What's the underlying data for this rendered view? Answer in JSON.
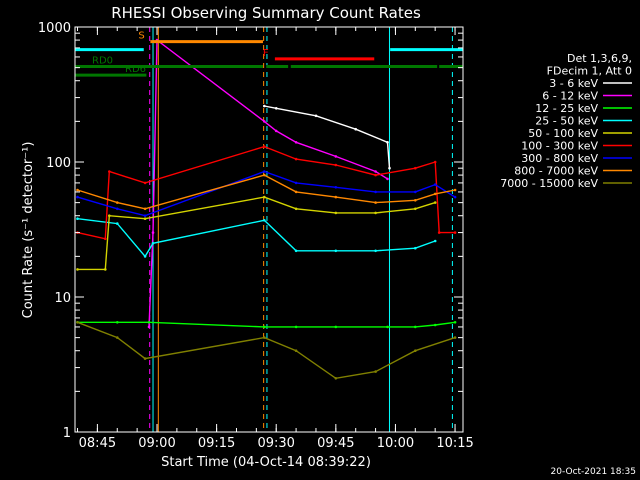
{
  "chart_data": {
    "type": "line",
    "title": "RHESSI Observing Summary Count Rates",
    "xlabel": "Start Time (04-Oct-14 08:39:22)",
    "ylabel": "Count Rate (s⁻¹ detector⁻¹)",
    "y_scale": "log",
    "ylim": [
      1,
      1000
    ],
    "xlim": [
      "08:39:22",
      "10:17:00"
    ],
    "x_ticks": [
      "08:45",
      "09:00",
      "09:15",
      "09:30",
      "09:45",
      "10:00",
      "10:15"
    ],
    "y_ticks": [
      "1",
      "10",
      "100",
      "1000"
    ],
    "legend_header": [
      "Det 1,3,6,9,",
      "FDecim 1, Att 0"
    ],
    "series": [
      {
        "name": "3 - 6 keV",
        "color": "#ffffff",
        "x": [
          "09:27:00",
          "09:30:00",
          "09:40:00",
          "09:50:00",
          "09:58:00",
          "09:58:30"
        ],
        "y": [
          260,
          250,
          220,
          175,
          140,
          90
        ]
      },
      {
        "name": "6 - 12 keV",
        "color": "#ff00ff",
        "x": [
          "08:58:00",
          "08:59:00",
          "09:00:00",
          "09:27:00",
          "09:30:00",
          "09:35:00",
          "09:45:00",
          "09:55:00",
          "09:58:00"
        ],
        "y": [
          6,
          30,
          800,
          200,
          170,
          140,
          110,
          85,
          75
        ]
      },
      {
        "name": "12 - 25 keV",
        "color": "#00ff00",
        "x": [
          "08:40:00",
          "08:50:00",
          "08:58:00",
          "09:27:00",
          "09:35:00",
          "09:45:00",
          "09:58:00",
          "10:05:00",
          "10:10:00",
          "10:15:00"
        ],
        "y": [
          6.5,
          6.5,
          6.5,
          6.0,
          6.0,
          6.0,
          6.0,
          6.0,
          6.2,
          6.5
        ]
      },
      {
        "name": "25 - 50 keV",
        "color": "#00ffff",
        "x": [
          "08:40:00",
          "08:50:00",
          "08:57:00",
          "08:59:00",
          "09:27:00",
          "09:35:00",
          "09:45:00",
          "09:55:00",
          "10:05:00",
          "10:10:00"
        ],
        "y": [
          38,
          35,
          20,
          25,
          37,
          22,
          22,
          22,
          23,
          26
        ]
      },
      {
        "name": "50 - 100 keV",
        "color": "#d4d400",
        "x": [
          "08:40:00",
          "08:47:00",
          "08:48:00",
          "08:57:00",
          "09:27:00",
          "09:35:00",
          "09:45:00",
          "09:55:00",
          "10:05:00",
          "10:10:00"
        ],
        "y": [
          16,
          16,
          40,
          38,
          55,
          45,
          42,
          42,
          45,
          50
        ]
      },
      {
        "name": "100 - 300 keV",
        "color": "#ff0000",
        "x": [
          "08:40:00",
          "08:47:00",
          "08:48:00",
          "08:57:00",
          "09:27:00",
          "09:35:00",
          "09:45:00",
          "09:55:00",
          "10:05:00",
          "10:10:00",
          "10:11:00",
          "10:15:00"
        ],
        "y": [
          30,
          27,
          85,
          70,
          130,
          105,
          95,
          80,
          90,
          100,
          30,
          30
        ]
      },
      {
        "name": "300 - 800 keV",
        "color": "#0000ff",
        "x": [
          "08:40:00",
          "08:50:00",
          "08:57:00",
          "09:27:00",
          "09:35:00",
          "09:45:00",
          "09:55:00",
          "10:05:00",
          "10:10:00",
          "10:15:00"
        ],
        "y": [
          55,
          45,
          40,
          85,
          70,
          65,
          60,
          60,
          68,
          55
        ]
      },
      {
        "name": "800 - 7000 keV",
        "color": "#ff8800",
        "x": [
          "08:40:00",
          "08:50:00",
          "08:57:00",
          "09:27:00",
          "09:35:00",
          "09:45:00",
          "09:55:00",
          "10:05:00",
          "10:10:00",
          "10:15:00"
        ],
        "y": [
          62,
          50,
          45,
          80,
          60,
          55,
          50,
          52,
          58,
          62
        ]
      },
      {
        "name": "7000 - 15000 keV",
        "color": "#808000",
        "x": [
          "08:40:00",
          "08:50:00",
          "08:57:00",
          "09:27:00",
          "09:35:00",
          "09:45:00",
          "09:55:00",
          "10:05:00",
          "10:15:00"
        ],
        "y": [
          6.5,
          5,
          3.5,
          5,
          4,
          2.5,
          2.8,
          4,
          5
        ]
      }
    ],
    "flag_bars": [
      {
        "label": "",
        "color": "#00ffff",
        "y_value": 680,
        "segments": [
          [
            "08:39:22",
            "08:56:40"
          ],
          [
            "09:58:40",
            "10:17:00"
          ]
        ]
      },
      {
        "label": "S",
        "color": "#ff8800",
        "y_value": 780,
        "segments": [
          [
            "08:58:20",
            "09:26:40"
          ]
        ]
      },
      {
        "label": "F",
        "color": "#ff0000",
        "y_value": 580,
        "segments": [
          [
            "09:29:40",
            "09:54:40"
          ]
        ]
      },
      {
        "label": "RD0",
        "color": "#007700",
        "y_value": 510,
        "segments": [
          [
            "08:39:22",
            "09:26:40"
          ],
          [
            "09:27:30",
            "09:33:00"
          ],
          [
            "09:33:40",
            "10:10:30"
          ],
          [
            "10:11:00",
            "10:17:00"
          ]
        ]
      },
      {
        "label": "RD6",
        "color": "#007700",
        "y_value": 440,
        "segments": [
          [
            "08:39:22",
            "08:57:20"
          ]
        ]
      }
    ],
    "vertical_markers": [
      {
        "x": "08:58:10",
        "color": "#ff00ff",
        "style": "dashed"
      },
      {
        "x": "08:59:00",
        "color": "#00ffff",
        "style": "solid"
      },
      {
        "x": "09:00:20",
        "color": "#ff8800",
        "style": "solid"
      },
      {
        "x": "09:26:50",
        "color": "#ff8800",
        "style": "dashed"
      },
      {
        "x": "09:27:40",
        "color": "#00ffff",
        "style": "dashed"
      },
      {
        "x": "09:58:30",
        "color": "#00ffff",
        "style": "solid"
      },
      {
        "x": "10:14:20",
        "color": "#00ffff",
        "style": "dashed"
      }
    ],
    "timestamp": "20-Oct-2021 18:35"
  }
}
